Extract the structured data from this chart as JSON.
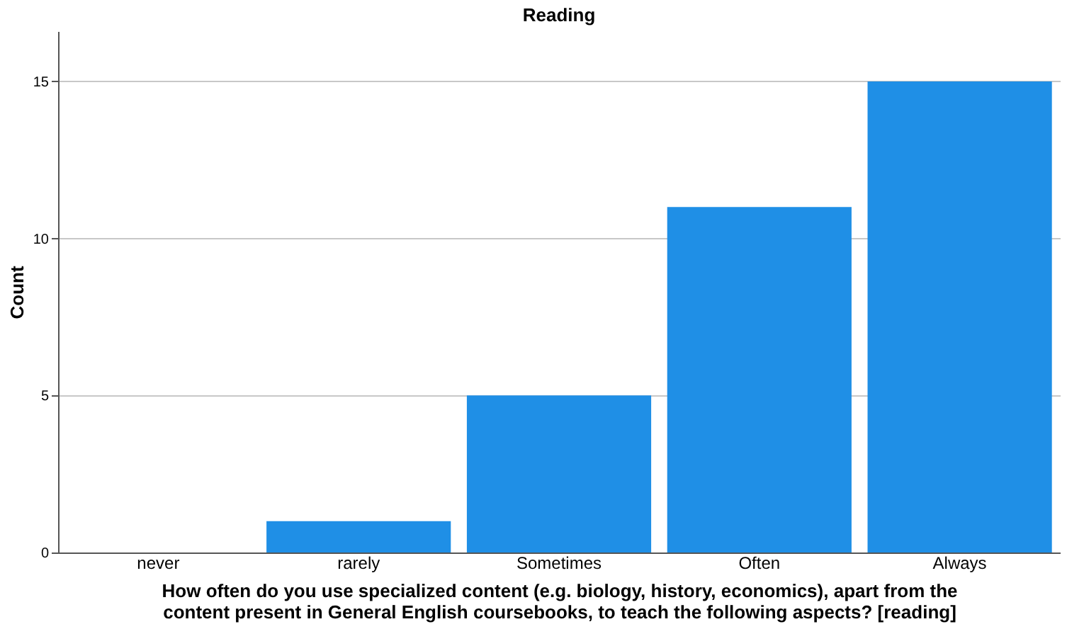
{
  "chart_data": {
    "type": "bar",
    "title": "Reading",
    "xlabel": "How often do you use specialized content (e.g. biology, history, economics), apart from the content present in General English coursebooks, to teach the following aspects? [reading]",
    "ylabel": "Count",
    "categories": [
      "never",
      "rarely",
      "Sometimes",
      "Often",
      "Always"
    ],
    "values": [
      0,
      1,
      5,
      11,
      15
    ],
    "color": "#1f8fe6",
    "ylim": [
      0,
      16.6
    ],
    "yticks": [
      0,
      5,
      10,
      15
    ],
    "grid": "y"
  }
}
